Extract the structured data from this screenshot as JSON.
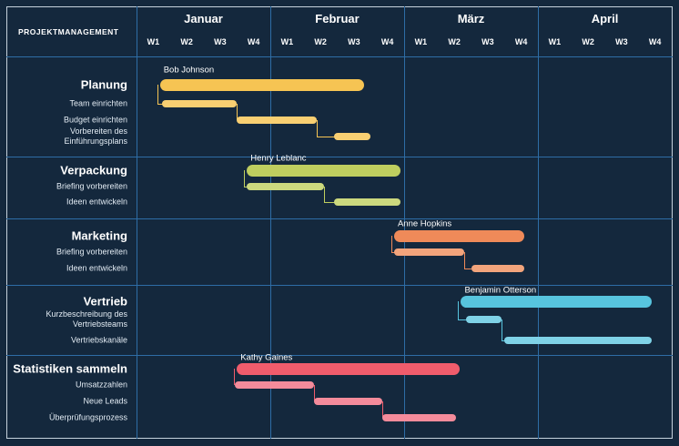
{
  "title": "PROJEKTMANAGEMENT",
  "timeline": {
    "months": [
      {
        "label": "Januar",
        "weeks": [
          "W1",
          "W2",
          "W3",
          "W4"
        ]
      },
      {
        "label": "Februar",
        "weeks": [
          "W1",
          "W2",
          "W3",
          "W4"
        ]
      },
      {
        "label": "März",
        "weeks": [
          "W1",
          "W2",
          "W3",
          "W4"
        ]
      },
      {
        "label": "April",
        "weeks": [
          "W1",
          "W2",
          "W3",
          "W4"
        ]
      }
    ]
  },
  "colors": {
    "background": "#14283d",
    "grid": "#2e6da6",
    "frame": "#c6d2dd",
    "text": "#ffffff",
    "subtext": "#e3ecf4"
  },
  "chart_data": {
    "type": "bar",
    "subtype": "gantt-timeline",
    "x_axis": {
      "unit": "week",
      "months": [
        "Januar",
        "Februar",
        "März",
        "April"
      ],
      "weeks_per_month": 4,
      "range_weeks": [
        0,
        16
      ]
    },
    "groups": [
      {
        "name": "Planung",
        "assignee": "Bob Johnson",
        "color": "#f6c453",
        "task_color": "#f8cf72",
        "start_week": 0.7,
        "end_week": 6.8,
        "tasks": [
          {
            "name": "Team einrichten",
            "start_week": 0.75,
            "end_week": 3.0
          },
          {
            "name": "Budget einrichten",
            "start_week": 3.0,
            "end_week": 5.4
          },
          {
            "name": "Vorbereiten des Einführungsplans",
            "start_week": 5.9,
            "end_week": 7.0
          }
        ]
      },
      {
        "name": "Verpackung",
        "assignee": "Henry Leblanc",
        "color": "#bfce5f",
        "task_color": "#ccd97e",
        "start_week": 3.3,
        "end_week": 7.9,
        "tasks": [
          {
            "name": "Briefing vorbereiten",
            "start_week": 3.3,
            "end_week": 5.6
          },
          {
            "name": "Ideen entwickeln",
            "start_week": 5.9,
            "end_week": 7.9
          }
        ]
      },
      {
        "name": "Marketing",
        "assignee": "Anne Hopkins",
        "color": "#ef8a59",
        "task_color": "#f2a47c",
        "start_week": 7.7,
        "end_week": 11.6,
        "tasks": [
          {
            "name": "Briefing vorbereiten",
            "start_week": 7.7,
            "end_week": 9.8
          },
          {
            "name": "Ideen entwickeln",
            "start_week": 10.0,
            "end_week": 11.6
          }
        ]
      },
      {
        "name": "Vertrieb",
        "assignee": "Benjamin Otterson",
        "color": "#57c4de",
        "task_color": "#7fd2e7",
        "start_week": 9.7,
        "end_week": 15.4,
        "tasks": [
          {
            "name": "Kurzbeschreibung des Vertriebsteams",
            "start_week": 9.85,
            "end_week": 10.9
          },
          {
            "name": "Vertriebskanäle",
            "start_week": 11.0,
            "end_week": 15.4
          }
        ]
      },
      {
        "name": "Statistiken sammeln",
        "assignee": "Kathy Gaines",
        "color": "#f05c6c",
        "task_color": "#f48b9b",
        "start_week": 3.0,
        "end_week": 9.65,
        "tasks": [
          {
            "name": "Umsatzzahlen",
            "start_week": 2.95,
            "end_week": 5.3
          },
          {
            "name": "Neue Leads",
            "start_week": 5.3,
            "end_week": 7.35
          },
          {
            "name": "Überprüfungsprozess",
            "start_week": 7.35,
            "end_week": 9.55
          }
        ]
      }
    ]
  }
}
